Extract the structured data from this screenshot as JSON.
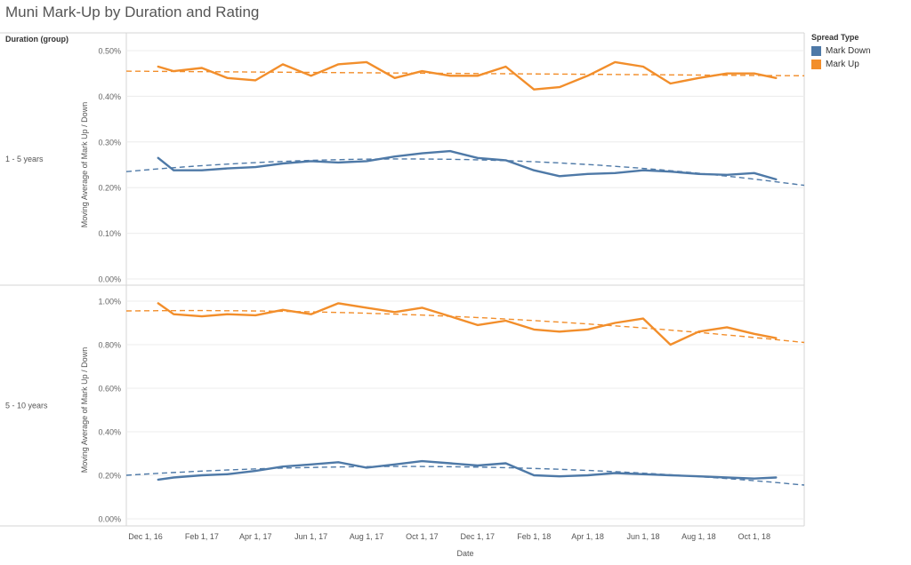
{
  "title": "Muni Mark-Up by Duration and Rating",
  "row_header": "Duration (group)",
  "legend_title": "Spread Type",
  "legend_items": [
    {
      "label": "Mark Down",
      "color": "#4e79a7"
    },
    {
      "label": "Mark Up",
      "color": "#f28e2b"
    }
  ],
  "chart_data": {
    "type": "line",
    "x_label": "Date",
    "y_label": "Moving Average of Mark Up / Down",
    "x_ticks": [
      "Dec 1, 16",
      "Feb 1, 17",
      "Apr 1, 17",
      "Jun 1, 17",
      "Aug 1, 17",
      "Oct 1, 17",
      "Dec 1, 17",
      "Feb 1, 18",
      "Apr 1, 18",
      "Jun 1, 18",
      "Aug 1, 18",
      "Oct 1, 18"
    ],
    "x_range": [
      "2016-11-10",
      "2018-11-25"
    ],
    "trend_lines": "dashed",
    "panels": [
      {
        "label": "1 - 5 years",
        "y_range": [
          0,
          0.5
        ],
        "y_ticks": [
          "0.00%",
          "0.10%",
          "0.20%",
          "0.30%",
          "0.40%",
          "0.50%"
        ],
        "series": [
          {
            "name": "Mark Down",
            "x": [
              "2016-12-15",
              "2017-01-01",
              "2017-02-01",
              "2017-03-01",
              "2017-04-01",
              "2017-05-01",
              "2017-06-01",
              "2017-07-01",
              "2017-08-01",
              "2017-09-01",
              "2017-10-01",
              "2017-11-01",
              "2017-12-01",
              "2018-01-01",
              "2018-02-01",
              "2018-03-01",
              "2018-04-01",
              "2018-05-01",
              "2018-06-01",
              "2018-07-01",
              "2018-08-01",
              "2018-09-01",
              "2018-10-01",
              "2018-10-25"
            ],
            "y": [
              0.265,
              0.238,
              0.238,
              0.242,
              0.245,
              0.253,
              0.258,
              0.255,
              0.258,
              0.268,
              0.275,
              0.28,
              0.265,
              0.26,
              0.238,
              0.225,
              0.23,
              0.232,
              0.238,
              0.235,
              0.23,
              0.228,
              0.232,
              0.218
            ]
          },
          {
            "name": "Mark Up",
            "x": [
              "2016-12-15",
              "2017-01-01",
              "2017-02-01",
              "2017-03-01",
              "2017-04-01",
              "2017-05-01",
              "2017-06-01",
              "2017-07-01",
              "2017-08-01",
              "2017-09-01",
              "2017-10-01",
              "2017-11-01",
              "2017-12-01",
              "2018-01-01",
              "2018-02-01",
              "2018-03-01",
              "2018-04-01",
              "2018-05-01",
              "2018-06-01",
              "2018-07-01",
              "2018-08-01",
              "2018-09-01",
              "2018-10-01",
              "2018-10-25"
            ],
            "y": [
              0.465,
              0.455,
              0.462,
              0.44,
              0.435,
              0.47,
              0.445,
              0.47,
              0.475,
              0.44,
              0.455,
              0.445,
              0.445,
              0.465,
              0.415,
              0.42,
              0.445,
              0.475,
              0.465,
              0.428,
              0.44,
              0.45,
              0.45,
              0.44
            ]
          }
        ],
        "trends": [
          {
            "name": "Mark Down",
            "y_start": 0.235,
            "y_peak": 0.262,
            "peak_x": "2017-11-01",
            "y_end": 0.205
          },
          {
            "name": "Mark Up",
            "y_start": 0.455,
            "y_end": 0.445
          }
        ]
      },
      {
        "label": "5 - 10 years",
        "y_range": [
          0,
          1.0
        ],
        "y_ticks": [
          "0.00%",
          "0.20%",
          "0.40%",
          "0.60%",
          "0.80%",
          "1.00%"
        ],
        "series": [
          {
            "name": "Mark Down",
            "x": [
              "2016-12-15",
              "2017-01-01",
              "2017-02-01",
              "2017-03-01",
              "2017-04-01",
              "2017-05-01",
              "2017-06-01",
              "2017-07-01",
              "2017-08-01",
              "2017-09-01",
              "2017-10-01",
              "2017-11-01",
              "2017-12-01",
              "2018-01-01",
              "2018-02-01",
              "2018-03-01",
              "2018-04-01",
              "2018-05-01",
              "2018-06-01",
              "2018-07-01",
              "2018-08-01",
              "2018-09-01",
              "2018-10-01",
              "2018-10-25"
            ],
            "y": [
              0.18,
              0.19,
              0.2,
              0.205,
              0.22,
              0.24,
              0.25,
              0.26,
              0.235,
              0.25,
              0.265,
              0.255,
              0.245,
              0.255,
              0.2,
              0.195,
              0.2,
              0.21,
              0.205,
              0.2,
              0.195,
              0.19,
              0.185,
              0.19
            ]
          },
          {
            "name": "Mark Up",
            "x": [
              "2016-12-15",
              "2017-01-01",
              "2017-02-01",
              "2017-03-01",
              "2017-04-01",
              "2017-05-01",
              "2017-06-01",
              "2017-07-01",
              "2017-08-01",
              "2017-09-01",
              "2017-10-01",
              "2017-11-01",
              "2017-12-01",
              "2018-01-01",
              "2018-02-01",
              "2018-03-01",
              "2018-04-01",
              "2018-05-01",
              "2018-06-01",
              "2018-07-01",
              "2018-08-01",
              "2018-09-01",
              "2018-10-01",
              "2018-10-25"
            ],
            "y": [
              0.99,
              0.94,
              0.93,
              0.94,
              0.935,
              0.96,
              0.94,
              0.99,
              0.97,
              0.95,
              0.97,
              0.93,
              0.89,
              0.91,
              0.87,
              0.86,
              0.87,
              0.9,
              0.92,
              0.8,
              0.86,
              0.88,
              0.85,
              0.83
            ]
          }
        ],
        "trends": [
          {
            "name": "Mark Down",
            "y_start": 0.2,
            "y_peak": 0.24,
            "peak_x": "2017-10-15",
            "y_end": 0.155
          },
          {
            "name": "Mark Up",
            "y_start": 0.955,
            "y_peak": 0.955,
            "peak_x": "2017-04-01",
            "y_end": 0.81
          }
        ]
      }
    ]
  }
}
